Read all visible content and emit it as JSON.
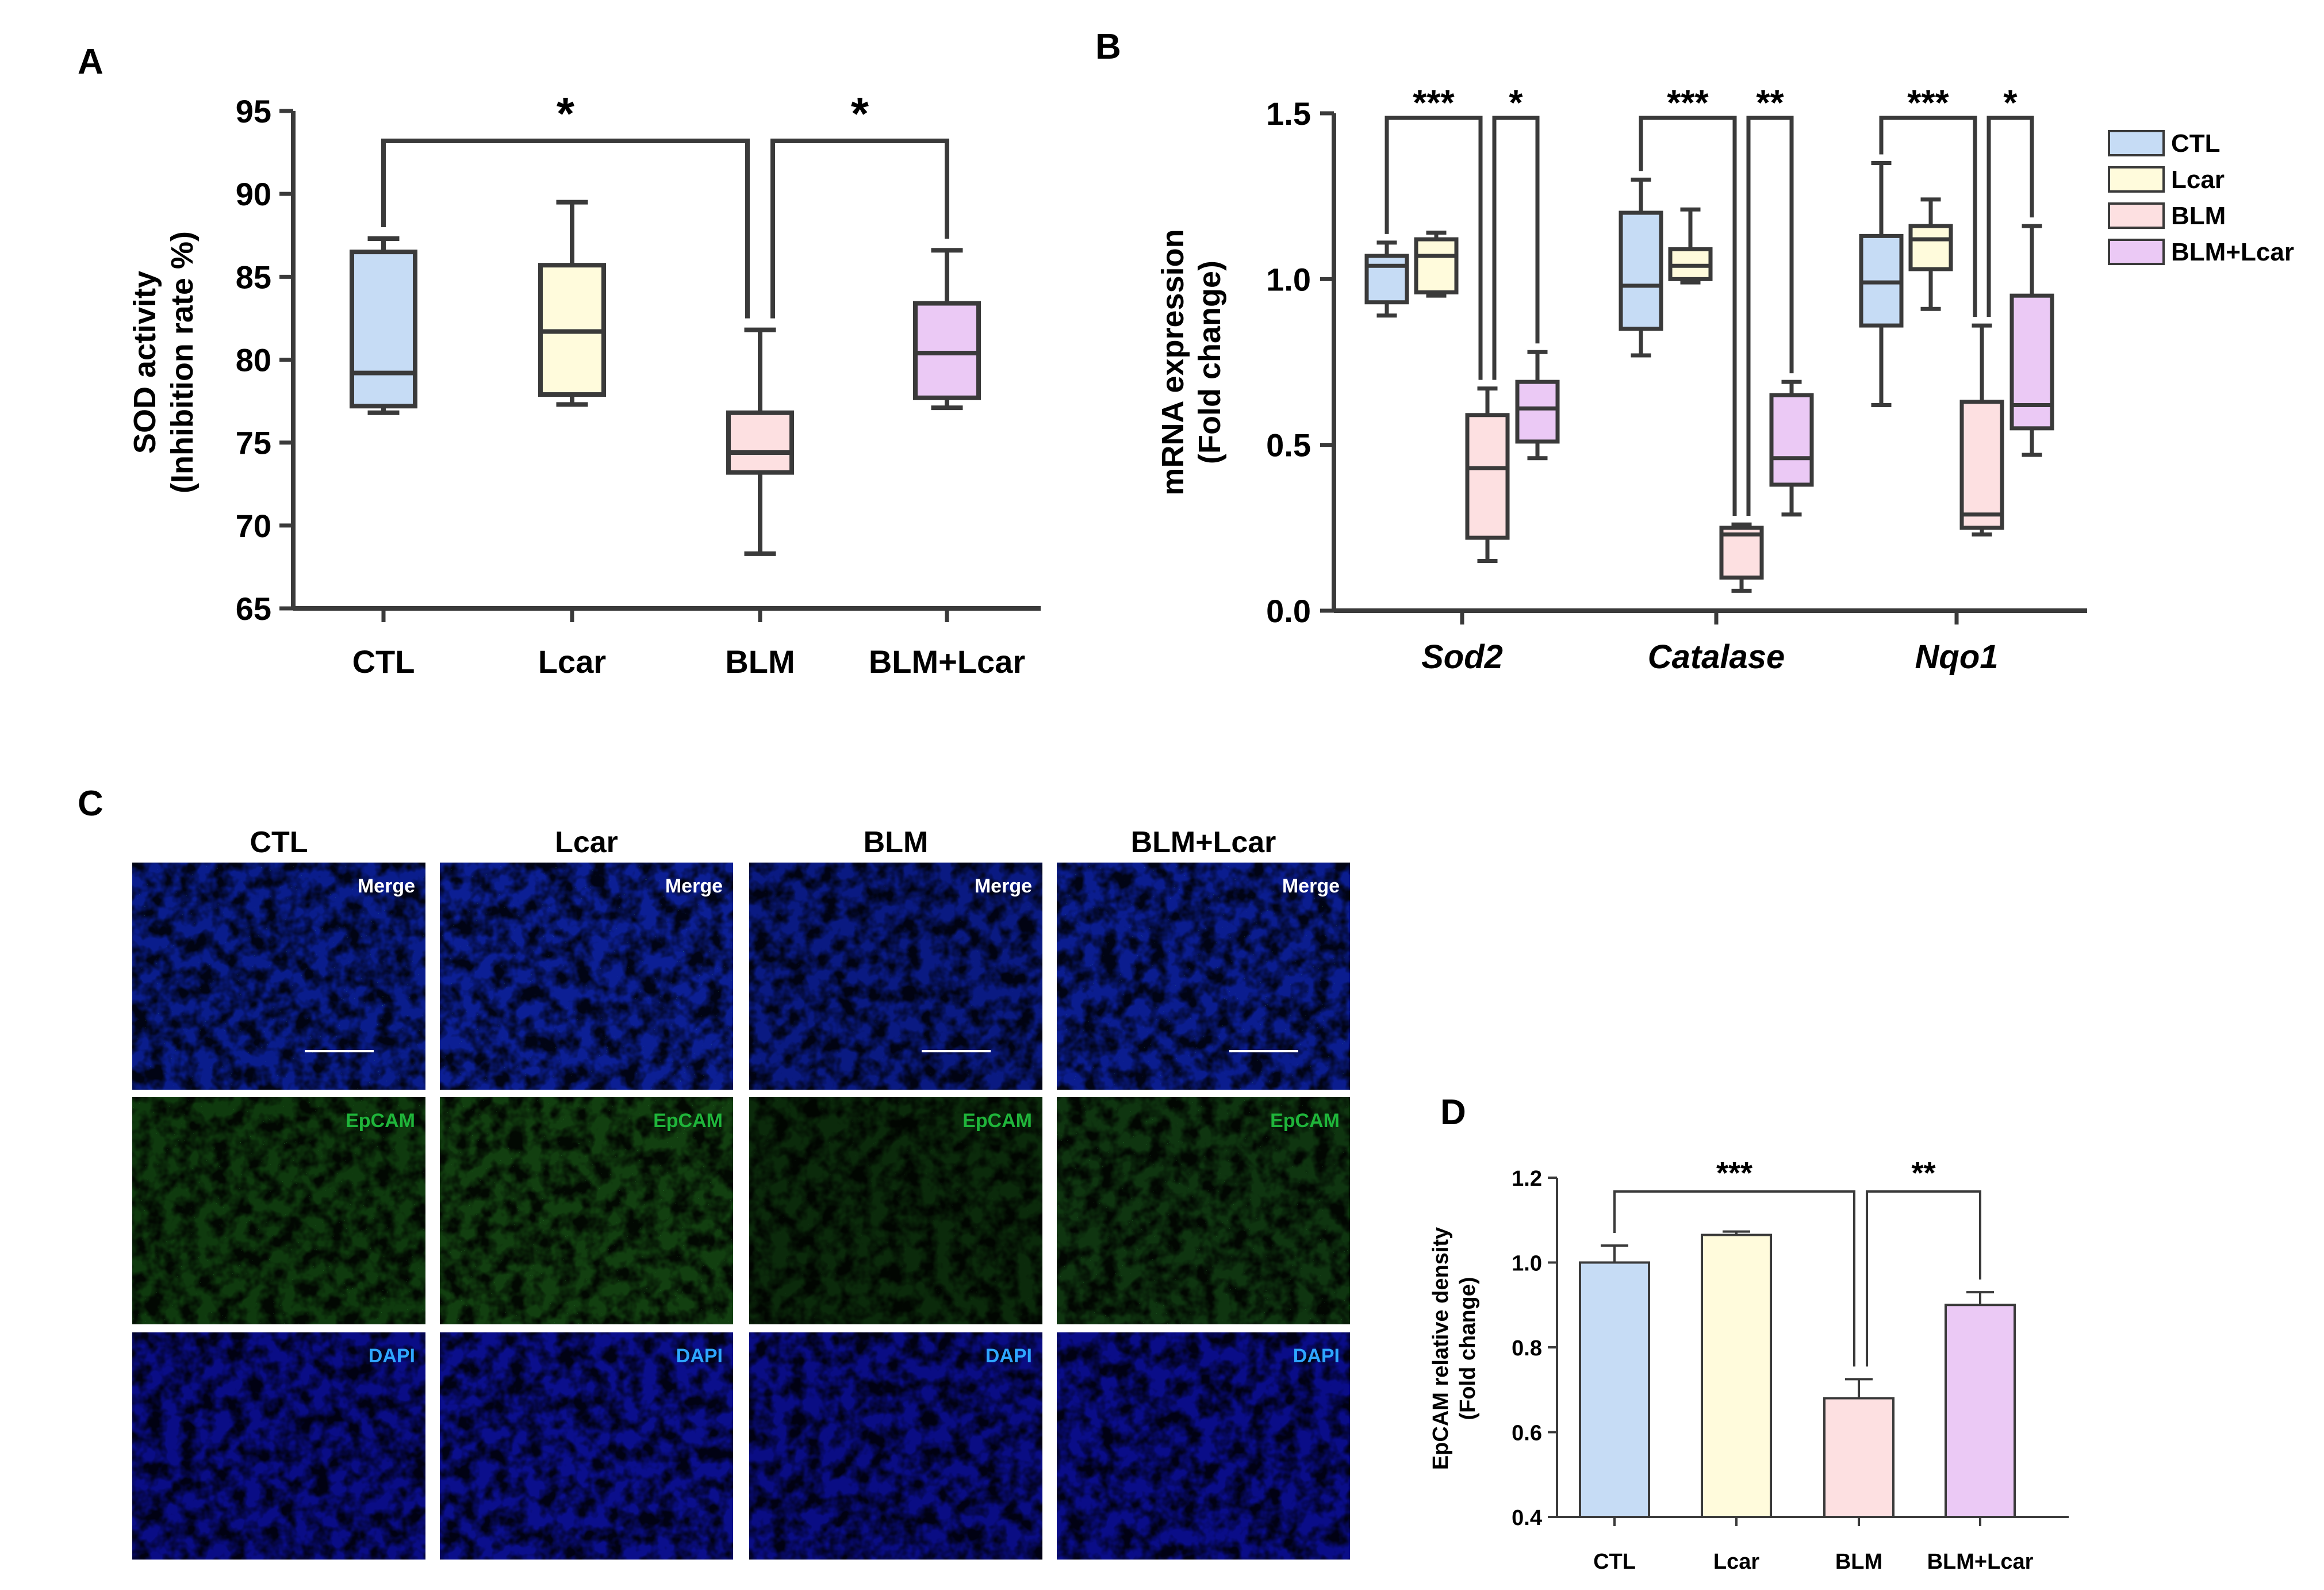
{
  "colors": {
    "CTL": "#c6dcf5",
    "Lcar": "#fffbdc",
    "BLM": "#fde0e1",
    "BLM+Lcar": "#ebc9f5",
    "stroke": "#3a3a3a",
    "merge_text": "#ffffff",
    "epcam_text": "#1fb53a",
    "dapi_text": "#2ea7ff"
  },
  "panels": {
    "A": {
      "label": "A",
      "chart_data": {
        "type": "box",
        "ylabel_line1": "SOD activity",
        "ylabel_line2": "(Inhibition rate %)",
        "ylim": [
          65,
          95
        ],
        "yticks": [
          65,
          70,
          75,
          80,
          85,
          90,
          95
        ],
        "categories": [
          "CTL",
          "Lcar",
          "BLM",
          "BLM+Lcar"
        ],
        "boxes": [
          {
            "name": "CTL",
            "min": 76.8,
            "q1": 77.2,
            "median": 79.2,
            "q3": 86.5,
            "max": 87.3
          },
          {
            "name": "Lcar",
            "min": 77.3,
            "q1": 77.9,
            "median": 81.7,
            "q3": 85.7,
            "max": 89.5
          },
          {
            "name": "BLM",
            "min": 68.3,
            "q1": 73.2,
            "median": 74.4,
            "q3": 76.8,
            "max": 81.8
          },
          {
            "name": "BLM+Lcar",
            "min": 77.1,
            "q1": 77.7,
            "median": 80.4,
            "q3": 83.4,
            "max": 86.6
          }
        ],
        "significance": [
          {
            "from": 0,
            "to": 2,
            "label": "*"
          },
          {
            "from": 2,
            "to": 3,
            "label": "*"
          }
        ]
      }
    },
    "B": {
      "label": "B",
      "chart_data": {
        "type": "box",
        "ylabel_line1": "mRNA expression",
        "ylabel_line2": "(Fold change)",
        "ylim": [
          0,
          1.5
        ],
        "yticks": [
          "0.0",
          "0.5",
          "1.0",
          "1.5"
        ],
        "genes": [
          "Sod2",
          "Catalase",
          "Nqo1"
        ],
        "series_names": [
          "CTL",
          "Lcar",
          "BLM",
          "BLM+Lcar"
        ],
        "boxes": [
          [
            {
              "min": 0.89,
              "q1": 0.93,
              "median": 1.04,
              "q3": 1.07,
              "max": 1.11
            },
            {
              "min": 0.95,
              "q1": 0.96,
              "median": 1.07,
              "q3": 1.12,
              "max": 1.14
            },
            {
              "min": 0.15,
              "q1": 0.22,
              "median": 0.43,
              "q3": 0.59,
              "max": 0.67
            },
            {
              "min": 0.46,
              "q1": 0.51,
              "median": 0.61,
              "q3": 0.69,
              "max": 0.78
            }
          ],
          [
            {
              "min": 0.77,
              "q1": 0.85,
              "median": 0.98,
              "q3": 1.2,
              "max": 1.3
            },
            {
              "min": 0.99,
              "q1": 1.0,
              "median": 1.04,
              "q3": 1.09,
              "max": 1.21
            },
            {
              "min": 0.06,
              "q1": 0.1,
              "median": 0.23,
              "q3": 0.25,
              "max": 0.26
            },
            {
              "min": 0.29,
              "q1": 0.38,
              "median": 0.46,
              "q3": 0.65,
              "max": 0.69
            }
          ],
          [
            {
              "min": 0.62,
              "q1": 0.86,
              "median": 0.99,
              "q3": 1.13,
              "max": 1.35
            },
            {
              "min": 0.91,
              "q1": 1.03,
              "median": 1.12,
              "q3": 1.16,
              "max": 1.24
            },
            {
              "min": 0.23,
              "q1": 0.25,
              "median": 0.29,
              "q3": 0.63,
              "max": 0.86
            },
            {
              "min": 0.47,
              "q1": 0.55,
              "median": 0.62,
              "q3": 0.95,
              "max": 1.16
            }
          ]
        ],
        "significance": [
          {
            "gene": 0,
            "pairs": [
              {
                "from": 0,
                "to": 2,
                "label": "***"
              },
              {
                "from": 2,
                "to": 3,
                "label": "*"
              }
            ]
          },
          {
            "gene": 1,
            "pairs": [
              {
                "from": 0,
                "to": 2,
                "label": "***"
              },
              {
                "from": 2,
                "to": 3,
                "label": "**"
              }
            ]
          },
          {
            "gene": 2,
            "pairs": [
              {
                "from": 0,
                "to": 2,
                "label": "***"
              },
              {
                "from": 2,
                "to": 3,
                "label": "*"
              }
            ]
          }
        ],
        "legend": [
          "CTL",
          "Lcar",
          "BLM",
          "BLM+Lcar"
        ]
      }
    },
    "C": {
      "label": "C",
      "columns": [
        "CTL",
        "Lcar",
        "BLM",
        "BLM+Lcar"
      ],
      "rows": [
        {
          "label": "Merge",
          "kind": "merge"
        },
        {
          "label": "EpCAM",
          "kind": "epcam"
        },
        {
          "label": "DAPI",
          "kind": "dapi"
        }
      ]
    },
    "D": {
      "label": "D",
      "chart_data": {
        "type": "bar",
        "ylabel_line1": "EpCAM relative density",
        "ylabel_line2": "(Fold change)",
        "ylim": [
          0.4,
          1.2
        ],
        "yticks": [
          "0.4",
          "0.6",
          "0.8",
          "1.0",
          "1.2"
        ],
        "categories": [
          "CTL",
          "Lcar",
          "BLM",
          "BLM+Lcar"
        ],
        "values": [
          1.0,
          1.065,
          0.68,
          0.9
        ],
        "errors": [
          0.04,
          0.008,
          0.045,
          0.03
        ],
        "significance": [
          {
            "from": 0,
            "to": 2,
            "label": "***"
          },
          {
            "from": 2,
            "to": 3,
            "label": "**"
          }
        ]
      }
    }
  }
}
